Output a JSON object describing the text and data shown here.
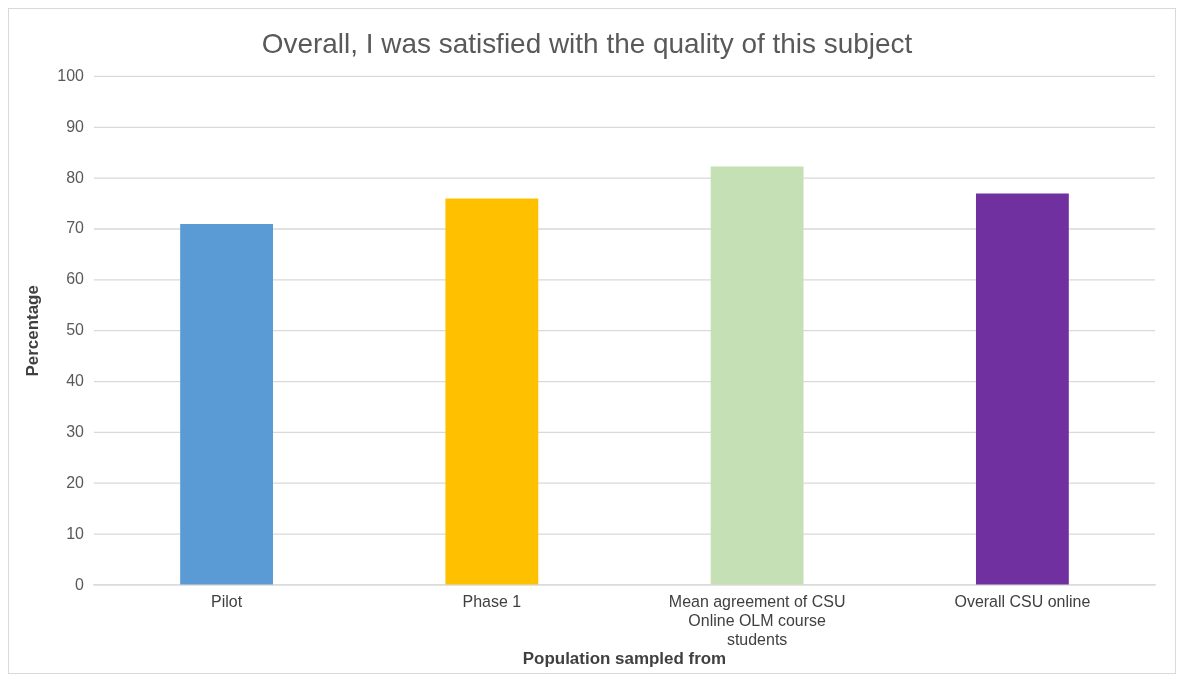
{
  "chart_data": {
    "type": "bar",
    "title": "Overall, I was satisfied with the quality of this subject",
    "xlabel": "Population sampled from",
    "ylabel": "Percentage",
    "categories": [
      "Pilot",
      "Phase 1",
      "Mean agreement of CSU Online OLM course students",
      "Overall CSU online"
    ],
    "values": [
      71,
      76,
      82.3,
      77
    ],
    "colors": [
      "#5b9bd5",
      "#ffc000",
      "#c5e0b4",
      "#7030a0"
    ],
    "ylim": [
      0,
      100
    ],
    "yticks": [
      0,
      10,
      20,
      30,
      40,
      50,
      60,
      70,
      80,
      90,
      100
    ],
    "grid": "y"
  }
}
